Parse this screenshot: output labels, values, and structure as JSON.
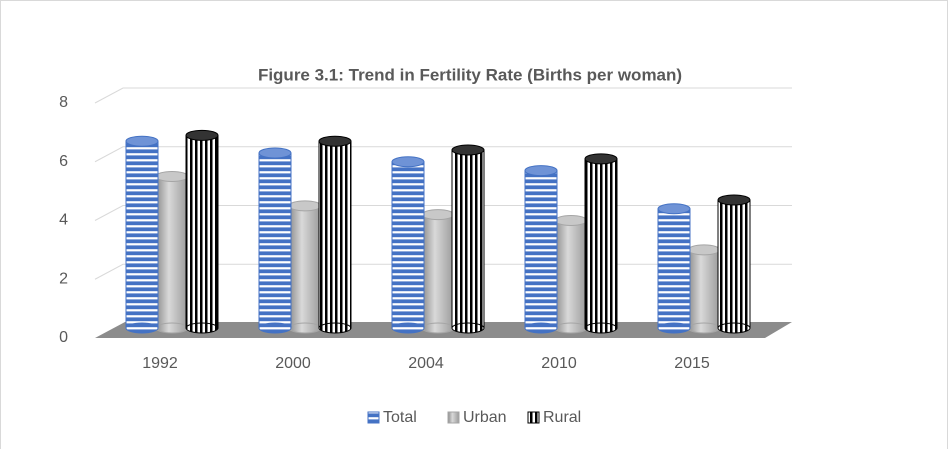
{
  "chart_data": {
    "type": "bar3d",
    "title": "Figure 3.1: Trend in Fertility Rate (Births per woman)",
    "categories": [
      "1992",
      "2000",
      "2004",
      "2010",
      "2015"
    ],
    "series": [
      {
        "name": "Total",
        "color": "#4472c4",
        "values": [
          6.7,
          6.3,
          6.0,
          5.7,
          4.4
        ]
      },
      {
        "name": "Urban",
        "color": "#a5a5a5",
        "values": [
          5.5,
          4.5,
          4.2,
          4.0,
          3.0
        ]
      },
      {
        "name": "Rural",
        "color": "#000000",
        "values": [
          6.9,
          6.7,
          6.4,
          6.1,
          4.7
        ]
      }
    ],
    "ylim": [
      0,
      8
    ],
    "yticks": [
      0,
      2,
      4,
      6,
      8
    ],
    "grid": true,
    "legend": "bottom"
  }
}
